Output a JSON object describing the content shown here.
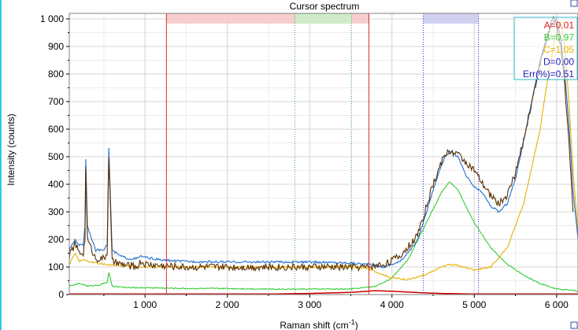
{
  "chart_data": {
    "type": "line",
    "title": "Cursor spectrum",
    "xlabel": "Raman shift (cm",
    "xlabel_sup": "-1",
    "xlabel_close": ")",
    "ylabel": "Intensity (counts)",
    "xlim": [
      80,
      6260
    ],
    "ylim": [
      0,
      1020
    ],
    "xticks": [
      1000,
      2000,
      3000,
      4000,
      5000,
      6000
    ],
    "xtick_labels": [
      "1 000",
      "2 000",
      "3 000",
      "4 000",
      "5 000",
      "6 000"
    ],
    "yticks": [
      0,
      100,
      200,
      300,
      400,
      500,
      600,
      700,
      800,
      900,
      1000
    ],
    "ytick_labels": [
      "0",
      "100",
      "200",
      "300",
      "400",
      "500",
      "600",
      "700",
      "800",
      "900",
      "1 000"
    ],
    "grid": true,
    "colors": {
      "blue_curve": "#1f6fd0",
      "brown_curve": "#5a2e00",
      "green_curve": "#33cc33",
      "yellow_curve": "#e8b100",
      "red_curve": "#cc0000",
      "band_red": "#f7c6c6",
      "band_green": "#c9f0c9",
      "band_blue": "#c9c9ef",
      "cursor_red": "#d23030",
      "cursor_green": "#3cb43c",
      "cursor_blue": "#3030c8",
      "legend_border": "#32b4c8"
    },
    "bands": [
      {
        "color": "red",
        "x0": 1260,
        "x1": 3720
      },
      {
        "color": "green",
        "x0": 2820,
        "x1": 3510
      },
      {
        "color": "blue",
        "x0": 4380,
        "x1": 5050
      }
    ],
    "cursors": [
      {
        "color": "red",
        "x": 1260,
        "style": "solid"
      },
      {
        "color": "red",
        "x": 3720,
        "style": "solid"
      },
      {
        "color": "green",
        "x": 2820,
        "style": "dotted"
      },
      {
        "color": "green",
        "x": 3510,
        "style": "dotted"
      },
      {
        "color": "blue",
        "x": 4380,
        "style": "dotted"
      },
      {
        "color": "blue",
        "x": 5050,
        "style": "dotted"
      }
    ],
    "series": [
      {
        "color": "blue",
        "x": [
          80,
          150,
          200,
          250,
          270,
          280,
          300,
          400,
          500,
          540,
          560,
          600,
          700,
          800,
          900,
          950,
          1000,
          1200,
          1500,
          2000,
          2500,
          3000,
          3500,
          3700,
          3900,
          4100,
          4300,
          4400,
          4500,
          4600,
          4650,
          4700,
          4800,
          4900,
          5000,
          5100,
          5200,
          5300,
          5400,
          5500,
          5600,
          5700,
          5800,
          5900,
          5950,
          6000,
          6050,
          6100,
          6150,
          6200,
          6260
        ],
        "y": [
          160,
          200,
          180,
          180,
          250,
          490,
          250,
          160,
          165,
          180,
          530,
          160,
          140,
          130,
          130,
          140,
          135,
          125,
          120,
          118,
          118,
          118,
          115,
          110,
          100,
          120,
          190,
          280,
          380,
          470,
          500,
          520,
          500,
          430,
          390,
          370,
          320,
          300,
          330,
          420,
          560,
          700,
          850,
          950,
          985,
          1000,
          930,
          800,
          620,
          380,
          200
        ]
      },
      {
        "color": "brown",
        "x": [
          80,
          150,
          200,
          250,
          270,
          280,
          300,
          400,
          500,
          540,
          560,
          600,
          700,
          800,
          900,
          950,
          1000,
          1200,
          1500,
          2000,
          2500,
          3000,
          3500,
          3700,
          3900,
          4100,
          4300,
          4400,
          4500,
          4600,
          4650,
          4700,
          4800,
          4900,
          5000,
          5100,
          5200,
          5300,
          5400,
          5500,
          5600,
          5700,
          5800,
          5900,
          5950,
          6000,
          6050,
          6100,
          6150,
          6200
        ],
        "y": [
          140,
          185,
          150,
          150,
          200,
          460,
          200,
          130,
          130,
          150,
          500,
          120,
          110,
          105,
          100,
          120,
          110,
          105,
          100,
          100,
          100,
          100,
          100,
          100,
          110,
          140,
          210,
          300,
          400,
          480,
          510,
          520,
          510,
          480,
          450,
          400,
          360,
          330,
          360,
          440,
          560,
          700,
          840,
          950,
          1000,
          980,
          900,
          750,
          550,
          300
        ]
      },
      {
        "color": "green",
        "x": [
          80,
          200,
          270,
          300,
          450,
          540,
          560,
          600,
          800,
          1000,
          1500,
          2000,
          2500,
          3000,
          3500,
          3800,
          4000,
          4200,
          4400,
          4600,
          4700,
          4800,
          4900,
          5000,
          5200,
          5400,
          5600,
          5800,
          6000,
          6200,
          6260
        ],
        "y": [
          30,
          40,
          35,
          30,
          35,
          45,
          80,
          30,
          25,
          25,
          22,
          22,
          20,
          20,
          20,
          30,
          60,
          130,
          250,
          370,
          410,
          380,
          320,
          260,
          170,
          110,
          70,
          40,
          20,
          15,
          12
        ]
      },
      {
        "color": "yellow",
        "x": [
          80,
          150,
          200,
          250,
          300,
          500,
          700,
          1000,
          1500,
          2000,
          2500,
          3000,
          3500,
          3700,
          4000,
          4200,
          4400,
          4600,
          4700,
          4800,
          5000,
          5200,
          5400,
          5600,
          5800,
          5900,
          6000,
          6050,
          6100,
          6150,
          6200,
          6260
        ],
        "y": [
          110,
          150,
          120,
          130,
          120,
          110,
          105,
          100,
          100,
          100,
          100,
          100,
          100,
          95,
          60,
          55,
          70,
          100,
          110,
          105,
          90,
          100,
          170,
          330,
          600,
          800,
          960,
          990,
          900,
          700,
          450,
          220
        ]
      },
      {
        "color": "red",
        "x": [
          80,
          2500,
          3000,
          3500,
          3800,
          4000,
          4200,
          4400,
          4600,
          4800,
          5000,
          5200,
          5400,
          5600,
          5800,
          6000,
          6260
        ],
        "y": [
          2,
          2,
          4,
          8,
          14,
          12,
          9,
          6,
          4,
          3,
          2,
          2,
          2,
          2,
          2,
          2,
          2
        ]
      }
    ],
    "legend": {
      "placement": "top-right",
      "entries": [
        {
          "label": "A=0.01",
          "color": "#e02020"
        },
        {
          "label": "B=0.97",
          "color": "#33cc33"
        },
        {
          "label": "C=1.05",
          "color": "#e8b100"
        },
        {
          "label": "D=0.00",
          "color": "#2020c0"
        },
        {
          "label": "Err(%)=0.51",
          "color": "#2020c0"
        }
      ]
    }
  }
}
